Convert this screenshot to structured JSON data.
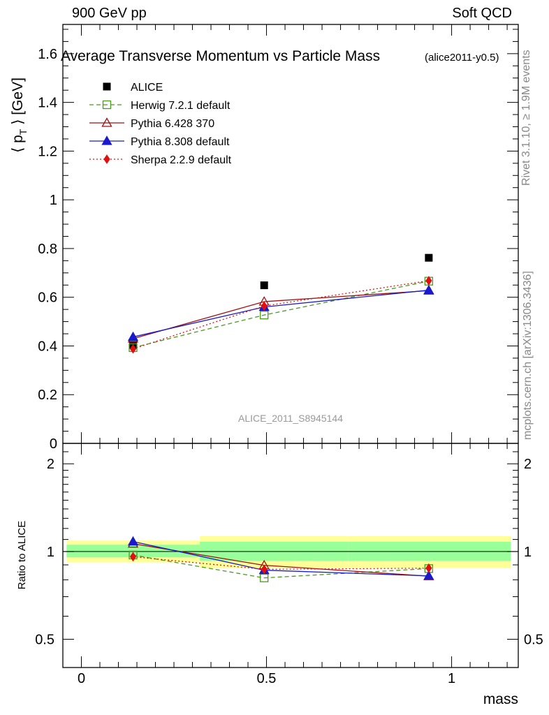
{
  "header": {
    "left": "900 GeV pp",
    "right": "Soft QCD"
  },
  "side": {
    "rivet": "Rivet 3.1.10, ≥ 1.9M events",
    "mcplots": "mcplots.cern.ch [arXiv:1306.3436]"
  },
  "chart_data": {
    "type": "line",
    "title": "Average Transverse Momentum vs Particle Mass",
    "subtitle": "(alice2011-y0.5)",
    "ylabel": "⟨ p_T ⟩ [GeV]",
    "ylabel_main": "⟨ p",
    "ylabel_sub": "T",
    "ylabel_rest": " ⟩ [GeV]",
    "ratio_ylabel": "Ratio to ALICE",
    "xlabel": "mass",
    "watermark": "ALICE_2011_S8945144",
    "xlim": [
      -0.05,
      1.18
    ],
    "ylim": [
      0,
      1.72
    ],
    "ratio_ylim": [
      0.4,
      2.35
    ],
    "ratio_log": true,
    "x_ticks": [
      "0",
      "0.5",
      "1"
    ],
    "y_ticks": [
      "0",
      "0.2",
      "0.4",
      "0.6",
      "0.8",
      "1",
      "1.2",
      "1.4",
      "1.6"
    ],
    "ratio_ticks": [
      "0.5",
      "1",
      "2"
    ],
    "x": [
      0.1396,
      0.4937,
      0.9383
    ],
    "bin_edges": [
      -0.04,
      0.32,
      0.72,
      1.16
    ],
    "reference": {
      "name": "ALICE",
      "values": [
        0.404,
        0.649,
        0.762
      ],
      "color": "#000000"
    },
    "series": [
      {
        "name": "Herwig 7.2.1 default",
        "values": [
          0.393,
          0.527,
          0.666
        ],
        "color": "#4a9a1c",
        "dash": "6,4",
        "marker": "open-square"
      },
      {
        "name": "Pythia 6.428 370",
        "values": [
          0.43,
          0.582,
          0.627
        ],
        "color": "#a01010",
        "dash": "",
        "marker": "open-triangle"
      },
      {
        "name": "Pythia 8.308 default",
        "values": [
          0.437,
          0.56,
          0.629
        ],
        "color": "#1a1acc",
        "dash": "",
        "marker": "filled-triangle"
      },
      {
        "name": "Sherpa 2.2.9 default",
        "values": [
          0.388,
          0.564,
          0.668
        ],
        "color": "#e01010",
        "dash": "2,3",
        "marker": "filled-diamond"
      }
    ],
    "band_green": [
      {
        "lo": 0.955,
        "hi": 1.055
      },
      {
        "lo": 0.93,
        "hi": 1.08
      },
      {
        "lo": 0.93,
        "hi": 1.08
      }
    ],
    "band_yellow": [
      {
        "lo": 0.92,
        "hi": 1.09
      },
      {
        "lo": 0.88,
        "hi": 1.13
      },
      {
        "lo": 0.88,
        "hi": 1.13
      }
    ],
    "ratio_values": [
      [
        0.973,
        0.812,
        0.874
      ],
      [
        1.064,
        0.897,
        0.823
      ],
      [
        1.082,
        0.863,
        0.825
      ],
      [
        0.96,
        0.869,
        0.877
      ]
    ]
  }
}
